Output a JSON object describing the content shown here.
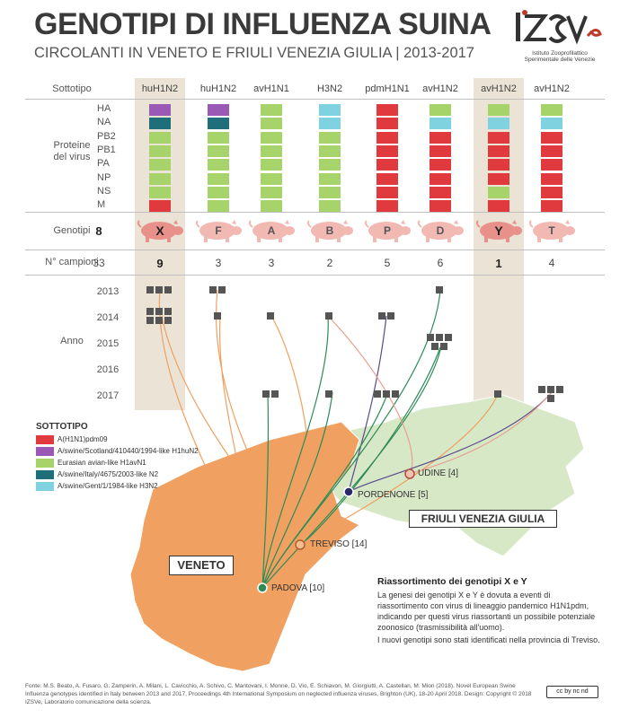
{
  "header": {
    "title": "GENOTIPI DI INFLUENZA SUINA",
    "subtitle": "CIRCOLANTI IN VENETO E FRIULI VENEZIA GIULIA | 2013-2017"
  },
  "logo": {
    "mark": "IZSVe",
    "text_line1": "Istituto Zooprofilattico",
    "text_line2": "Sperimentale delle Venezie"
  },
  "labels": {
    "sottotipo": "Sottotipo",
    "proteine": "Proteine\ndel virus",
    "genotipi": "Genotipi",
    "genotipi_total": "8",
    "campioni": "N° campioni",
    "campioni_total": "33",
    "anno": "Anno"
  },
  "proteins": [
    "HA",
    "NA",
    "PB2",
    "PB1",
    "PA",
    "NP",
    "NS",
    "M"
  ],
  "colors": {
    "pdm": "#e03a3e",
    "scotland": "#9b59b6",
    "avian": "#a6d46a",
    "italy": "#1f6f7a",
    "gent": "#7fd3e0",
    "pig": "#f2b8b2",
    "pig_hl": "#e8918a",
    "highlight": "#ebe4d6"
  },
  "columns": [
    {
      "subtype": "huH1N2",
      "genotype": "X",
      "count": "9",
      "highlight": true,
      "genes": [
        "scotland",
        "italy",
        "avian",
        "avian",
        "avian",
        "avian",
        "avian",
        "pdm"
      ]
    },
    {
      "subtype": "huH1N2",
      "genotype": "F",
      "count": "3",
      "highlight": false,
      "genes": [
        "scotland",
        "italy",
        "avian",
        "avian",
        "avian",
        "avian",
        "avian",
        "avian"
      ]
    },
    {
      "subtype": "avH1N1",
      "genotype": "A",
      "count": "3",
      "highlight": false,
      "genes": [
        "avian",
        "avian",
        "avian",
        "avian",
        "avian",
        "avian",
        "avian",
        "avian"
      ]
    },
    {
      "subtype": "H3N2",
      "genotype": "B",
      "count": "2",
      "highlight": false,
      "genes": [
        "gent",
        "gent",
        "avian",
        "avian",
        "avian",
        "avian",
        "avian",
        "avian"
      ]
    },
    {
      "subtype": "pdmH1N1",
      "genotype": "P",
      "count": "5",
      "highlight": false,
      "genes": [
        "pdm",
        "pdm",
        "pdm",
        "pdm",
        "pdm",
        "pdm",
        "pdm",
        "pdm"
      ]
    },
    {
      "subtype": "avH1N2",
      "genotype": "D",
      "count": "6",
      "highlight": false,
      "genes": [
        "avian",
        "gent",
        "pdm",
        "pdm",
        "pdm",
        "pdm",
        "pdm",
        "pdm"
      ]
    },
    {
      "subtype": "avH1N2",
      "genotype": "Y",
      "count": "1",
      "highlight": true,
      "genes": [
        "avian",
        "gent",
        "pdm",
        "pdm",
        "pdm",
        "pdm",
        "avian",
        "pdm"
      ]
    },
    {
      "subtype": "avH1N2",
      "genotype": "T",
      "count": "4",
      "highlight": false,
      "genes": [
        "avian",
        "gent",
        "pdm",
        "pdm",
        "pdm",
        "pdm",
        "pdm",
        "pdm"
      ]
    }
  ],
  "years": [
    "2013",
    "2014",
    "2015",
    "2016",
    "2017"
  ],
  "samples": [
    {
      "col": 0,
      "year": 0,
      "n": 3
    },
    {
      "col": 0,
      "year": 1,
      "n": 6
    },
    {
      "col": 1,
      "year": 0,
      "n": 2
    },
    {
      "col": 1,
      "year": 1,
      "n": 1
    },
    {
      "col": 2,
      "year": 1,
      "n": 1
    },
    {
      "col": 2,
      "year": 4,
      "n": 2
    },
    {
      "col": 3,
      "year": 1,
      "n": 1
    },
    {
      "col": 3,
      "year": 4,
      "n": 1
    },
    {
      "col": 4,
      "year": 1,
      "n": 2
    },
    {
      "col": 4,
      "year": 4,
      "n": 3
    },
    {
      "col": 5,
      "year": 0,
      "n": 1
    },
    {
      "col": 5,
      "year": 2,
      "n": 5
    },
    {
      "col": 6,
      "year": 4,
      "n": 1
    },
    {
      "col": 7,
      "year": 4,
      "n": 4
    }
  ],
  "legend": {
    "title": "SOTTOTIPO",
    "items": [
      {
        "color": "pdm",
        "label": "A(H1N1)pdm09"
      },
      {
        "color": "scotland",
        "label": "A/swine/Scotland/410440/1994-like H1huN2"
      },
      {
        "color": "avian",
        "label": "Eurasian avian-like H1avN1"
      },
      {
        "color": "italy",
        "label": "A/swine/Italy/4675/2003-like N2"
      },
      {
        "color": "gent",
        "label": "A/swine/Gent/1/1984-like H3N2"
      }
    ]
  },
  "map": {
    "veneto": "VENETO",
    "fvg": "FRIULI VENEZIA GIULIA",
    "cities": {
      "udine": "UDINE [4]",
      "pordenone": "PORDENONE [5]",
      "treviso": "TREVISO [14]",
      "padova": "PADOVA [10]"
    }
  },
  "info": {
    "title": "Riassortimento dei genotipi X e Y",
    "text": "La genesi dei genotipi X e Y è dovuta a eventi di riassortimento con virus di lineaggio pandemico H1N1pdm, indicando per questi virus riassortanti un possibile potenziale zoonosico (trasmissibilità all'uomo).",
    "text2": "I nuovi genotipi sono stati identificati nella provincia di Treviso."
  },
  "footer": "Fonte: M.S. Beato, A. Fusaro, G. Zamperin, A. Milani, L. Cavicchio, A. Schivo, C. Mantovani, I. Monne, D. Vio, E. Schiavon, M. Giorgiutti, A. Castellan, M. Mion (2018). Novel European Swine Influenza genotypes identified in Italy between 2013 and 2017, Proceedings 4th International Symposium on neglected influenza viruses, Brighton (UK), 18-20 April 2018. Design: Copyright © 2018 IZSVe, Laboratorio comunicazione della scienza.",
  "license": "cc by nc nd"
}
